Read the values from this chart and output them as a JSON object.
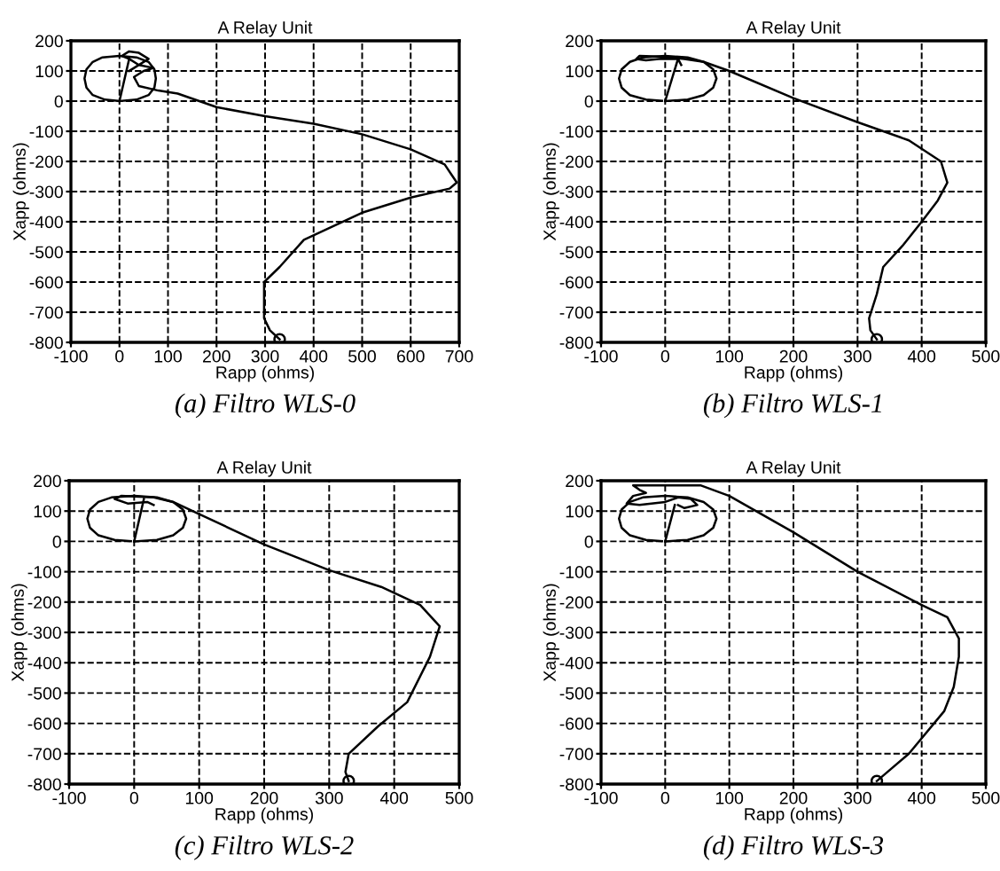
{
  "chart_data": [
    {
      "type": "line",
      "title": "A Relay Unit",
      "xlabel": "Rapp (ohms)",
      "ylabel": "Xapp (ohms)",
      "annotations": [
        "(a) Filtro WLS-0"
      ],
      "xlim": [
        -100,
        700
      ],
      "xticks": [
        -100,
        0,
        100,
        200,
        300,
        400,
        500,
        600,
        700
      ],
      "ylim": [
        -800,
        200
      ],
      "yticks": [
        -800,
        -700,
        -600,
        -500,
        -400,
        -300,
        -200,
        -100,
        0,
        100,
        200
      ],
      "grid": true,
      "series": [
        {
          "color": "#000000",
          "x": [
            0,
            35,
            60,
            72,
            75,
            72,
            60,
            35,
            0,
            -35,
            -55,
            -68,
            -72,
            -68,
            -55,
            -30,
            -5
          ],
          "values": [
            0,
            5,
            20,
            45,
            75,
            105,
            130,
            145,
            150,
            145,
            130,
            105,
            75,
            45,
            20,
            5,
            1
          ]
        },
        {
          "color": "#000000",
          "x": [
            0,
            20
          ],
          "values": [
            0,
            140
          ]
        },
        {
          "color": "#000000",
          "x": [
            330,
            310,
            298,
            298,
            330,
            380,
            500,
            600,
            680,
            695,
            670,
            600,
            500,
            400,
            300,
            200,
            120,
            80,
            40,
            30,
            50,
            70,
            40,
            20,
            5,
            20,
            40,
            60,
            30,
            20
          ],
          "values": [
            -790,
            -760,
            -720,
            -600,
            -550,
            -460,
            -370,
            -320,
            -290,
            -270,
            -210,
            -160,
            -110,
            -75,
            -50,
            -20,
            25,
            35,
            50,
            80,
            100,
            110,
            120,
            140,
            150,
            165,
            160,
            140,
            110,
            100
          ]
        },
        {
          "type": "scatter",
          "color": "#000000",
          "marker": "circle",
          "x": [
            330
          ],
          "values": [
            -790
          ]
        }
      ]
    },
    {
      "type": "line",
      "title": "A Relay Unit",
      "xlabel": "Rapp (ohms)",
      "ylabel": "Xapp (ohms)",
      "annotations": [
        "(b) Filtro WLS-1"
      ],
      "xlim": [
        -100,
        500
      ],
      "xticks": [
        -100,
        0,
        100,
        200,
        300,
        400,
        500
      ],
      "ylim": [
        -800,
        200
      ],
      "yticks": [
        -800,
        -700,
        -600,
        -500,
        -400,
        -300,
        -200,
        -100,
        0,
        100,
        200
      ],
      "grid": true,
      "series": [
        {
          "color": "#000000",
          "x": [
            0,
            35,
            60,
            75,
            80,
            75,
            60,
            35,
            0,
            -35,
            -55,
            -68,
            -72,
            -68,
            -55,
            -30,
            -5
          ],
          "values": [
            0,
            5,
            20,
            45,
            75,
            105,
            130,
            145,
            150,
            145,
            130,
            105,
            75,
            45,
            20,
            5,
            1
          ]
        },
        {
          "color": "#000000",
          "x": [
            0,
            20
          ],
          "values": [
            0,
            140
          ]
        },
        {
          "color": "#000000",
          "x": [
            330,
            320,
            318,
            330,
            340,
            370,
            400,
            425,
            440,
            430,
            380,
            300,
            200,
            100,
            60,
            30,
            -10,
            -40,
            -45,
            -30,
            -10,
            20,
            25
          ],
          "values": [
            -790,
            -760,
            -720,
            -640,
            -550,
            -480,
            -400,
            -330,
            -270,
            -200,
            -130,
            -70,
            10,
            100,
            130,
            140,
            148,
            150,
            140,
            135,
            140,
            140,
            120
          ]
        },
        {
          "type": "scatter",
          "color": "#000000",
          "marker": "circle",
          "x": [
            330
          ],
          "values": [
            -790
          ]
        }
      ]
    },
    {
      "type": "line",
      "title": "A Relay Unit",
      "xlabel": "Rapp (ohms)",
      "ylabel": "Xapp (ohms)",
      "annotations": [
        "(c) Filtro WLS-2"
      ],
      "xlim": [
        -100,
        500
      ],
      "xticks": [
        -100,
        0,
        100,
        200,
        300,
        400,
        500
      ],
      "ylim": [
        -800,
        200
      ],
      "yticks": [
        -800,
        -700,
        -600,
        -500,
        -400,
        -300,
        -200,
        -100,
        0,
        100,
        200
      ],
      "grid": true,
      "series": [
        {
          "color": "#000000",
          "x": [
            0,
            35,
            60,
            75,
            80,
            75,
            60,
            35,
            0,
            -35,
            -55,
            -68,
            -72,
            -68,
            -55,
            -30,
            -5
          ],
          "values": [
            0,
            5,
            20,
            45,
            75,
            105,
            130,
            145,
            150,
            145,
            130,
            105,
            75,
            45,
            20,
            5,
            1
          ]
        },
        {
          "color": "#000000",
          "x": [
            0,
            15
          ],
          "values": [
            0,
            140
          ]
        },
        {
          "color": "#000000",
          "x": [
            330,
            325,
            330,
            375,
            420,
            455,
            470,
            440,
            380,
            300,
            200,
            100,
            60,
            30,
            0,
            -20,
            -30,
            -10,
            20,
            30
          ],
          "values": [
            -790,
            -760,
            -700,
            -610,
            -530,
            -380,
            -280,
            -210,
            -150,
            -95,
            -10,
            90,
            130,
            145,
            148,
            150,
            140,
            125,
            130,
            120
          ]
        },
        {
          "type": "scatter",
          "color": "#000000",
          "marker": "circle",
          "x": [
            330
          ],
          "values": [
            -790
          ]
        }
      ]
    },
    {
      "type": "line",
      "title": "A Relay Unit",
      "xlabel": "Rapp (ohms)",
      "ylabel": "Xapp (ohms)",
      "annotations": [
        "(d) Filtro WLS-3"
      ],
      "xlim": [
        -100,
        500
      ],
      "xticks": [
        -100,
        0,
        100,
        200,
        300,
        400,
        500
      ],
      "ylim": [
        -800,
        200
      ],
      "yticks": [
        -800,
        -700,
        -600,
        -500,
        -400,
        -300,
        -200,
        -100,
        0,
        100,
        200
      ],
      "grid": true,
      "series": [
        {
          "color": "#000000",
          "x": [
            0,
            35,
            60,
            75,
            80,
            75,
            60,
            35,
            0,
            -35,
            -55,
            -68,
            -72,
            -68,
            -55,
            -30,
            -5
          ],
          "values": [
            0,
            5,
            20,
            45,
            75,
            105,
            130,
            145,
            150,
            145,
            130,
            105,
            75,
            45,
            20,
            5,
            1
          ]
        },
        {
          "color": "#000000",
          "x": [
            0,
            15
          ],
          "values": [
            0,
            120
          ]
        },
        {
          "color": "#000000",
          "x": [
            330,
            380,
            435,
            450,
            458,
            458,
            440,
            400,
            300,
            200,
            100,
            55,
            -50,
            -40,
            -30,
            -50,
            -60,
            -40,
            0,
            20,
            40,
            50,
            30,
            20
          ],
          "values": [
            -790,
            -700,
            -560,
            -480,
            -380,
            -320,
            -250,
            -210,
            -100,
            30,
            150,
            185,
            185,
            170,
            160,
            150,
            125,
            120,
            130,
            145,
            140,
            120,
            110,
            120
          ]
        },
        {
          "type": "scatter",
          "color": "#000000",
          "marker": "circle",
          "x": [
            330
          ],
          "values": [
            -790
          ]
        }
      ]
    }
  ]
}
